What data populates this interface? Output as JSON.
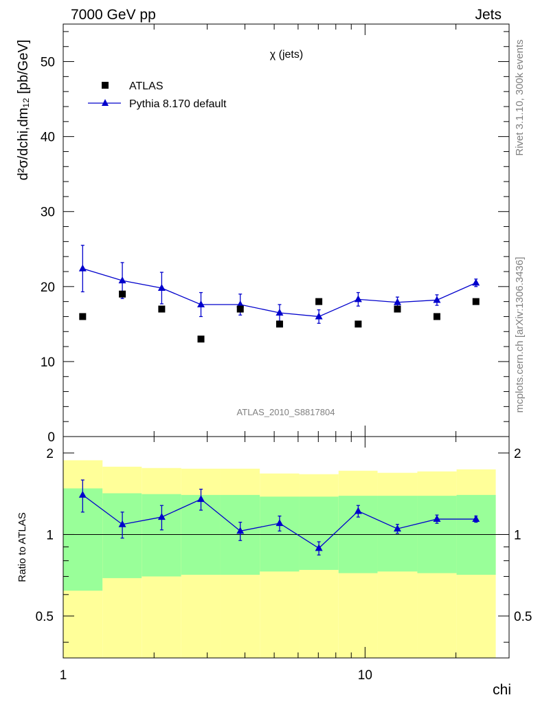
{
  "header": {
    "energy_label": "7000 GeV pp",
    "category_label": "Jets"
  },
  "side_labels": {
    "rivet": "Rivet 3.1.10,  300k events",
    "mcplots": "mcplots.cern.ch [arXiv:1306.3436]"
  },
  "colors": {
    "mc": "#0000cc",
    "data": "#000000",
    "band_outer": "#ffff99",
    "band_inner": "#99ff99"
  },
  "chart_data": [
    {
      "type": "scatter",
      "title": "χ (jets)",
      "analysis_label": "ATLAS_2010_S8817804",
      "xlabel": "",
      "ylabel": "d²σ/dchi,dm₁₂ [pb/GeV]",
      "x_scale": "log",
      "xlim": [
        1,
        30
      ],
      "ylim": [
        0,
        55
      ],
      "y_ticks": [
        "0",
        "10",
        "20",
        "30",
        "40",
        "50"
      ],
      "legend_placement": "top-left",
      "bin_edges": [
        1.0,
        1.35,
        1.82,
        2.46,
        3.32,
        4.48,
        6.05,
        8.17,
        11.0,
        14.9,
        20.1,
        27.1
      ],
      "x": [
        1.16,
        1.57,
        2.12,
        2.86,
        3.86,
        5.21,
        7.03,
        9.49,
        12.8,
        17.3,
        23.3
      ],
      "series": [
        {
          "name": "ATLAS",
          "style": "markers",
          "marker": "square",
          "values": [
            16.0,
            19.0,
            17.0,
            13.0,
            17.0,
            15.0,
            18.0,
            15.0,
            17.0,
            16.0,
            18.0
          ]
        },
        {
          "name": "Pythia 8.170 default",
          "style": "line-markers",
          "marker": "triangle",
          "values": [
            22.4,
            20.8,
            19.8,
            17.6,
            17.6,
            16.5,
            16.0,
            18.3,
            17.9,
            18.2,
            20.5
          ],
          "errors": [
            3.1,
            2.4,
            2.1,
            1.6,
            1.4,
            1.1,
            0.9,
            0.9,
            0.7,
            0.7,
            0.5
          ]
        }
      ]
    },
    {
      "type": "scatter",
      "xlabel": "chi",
      "ylabel": "Ratio to ATLAS",
      "x_scale": "log",
      "y_scale": "log",
      "xlim": [
        1,
        30
      ],
      "ylim": [
        0.35,
        2.3
      ],
      "x_ticks": [
        "1",
        "10"
      ],
      "y_ticks": [
        "0.5",
        "1",
        "2"
      ],
      "reference_line": 1,
      "bands": {
        "outer_lo": [
          0.33,
          0.33,
          0.33,
          0.33,
          0.33,
          0.33,
          0.33,
          0.33,
          0.33,
          0.33,
          0.33
        ],
        "outer_hi": [
          1.88,
          1.78,
          1.76,
          1.75,
          1.75,
          1.68,
          1.67,
          1.72,
          1.69,
          1.71,
          1.74
        ],
        "inner_lo": [
          0.62,
          0.69,
          0.7,
          0.71,
          0.71,
          0.73,
          0.74,
          0.72,
          0.73,
          0.72,
          0.71
        ],
        "inner_hi": [
          1.48,
          1.42,
          1.41,
          1.4,
          1.4,
          1.38,
          1.38,
          1.39,
          1.39,
          1.39,
          1.4
        ]
      },
      "series": [
        {
          "name": "Pythia 8.170 default",
          "values": [
            1.4,
            1.09,
            1.16,
            1.35,
            1.03,
            1.1,
            0.89,
            1.22,
            1.05,
            1.14,
            1.14
          ],
          "errors": [
            0.19,
            0.12,
            0.12,
            0.12,
            0.08,
            0.07,
            0.05,
            0.06,
            0.04,
            0.04,
            0.03
          ]
        }
      ]
    }
  ]
}
